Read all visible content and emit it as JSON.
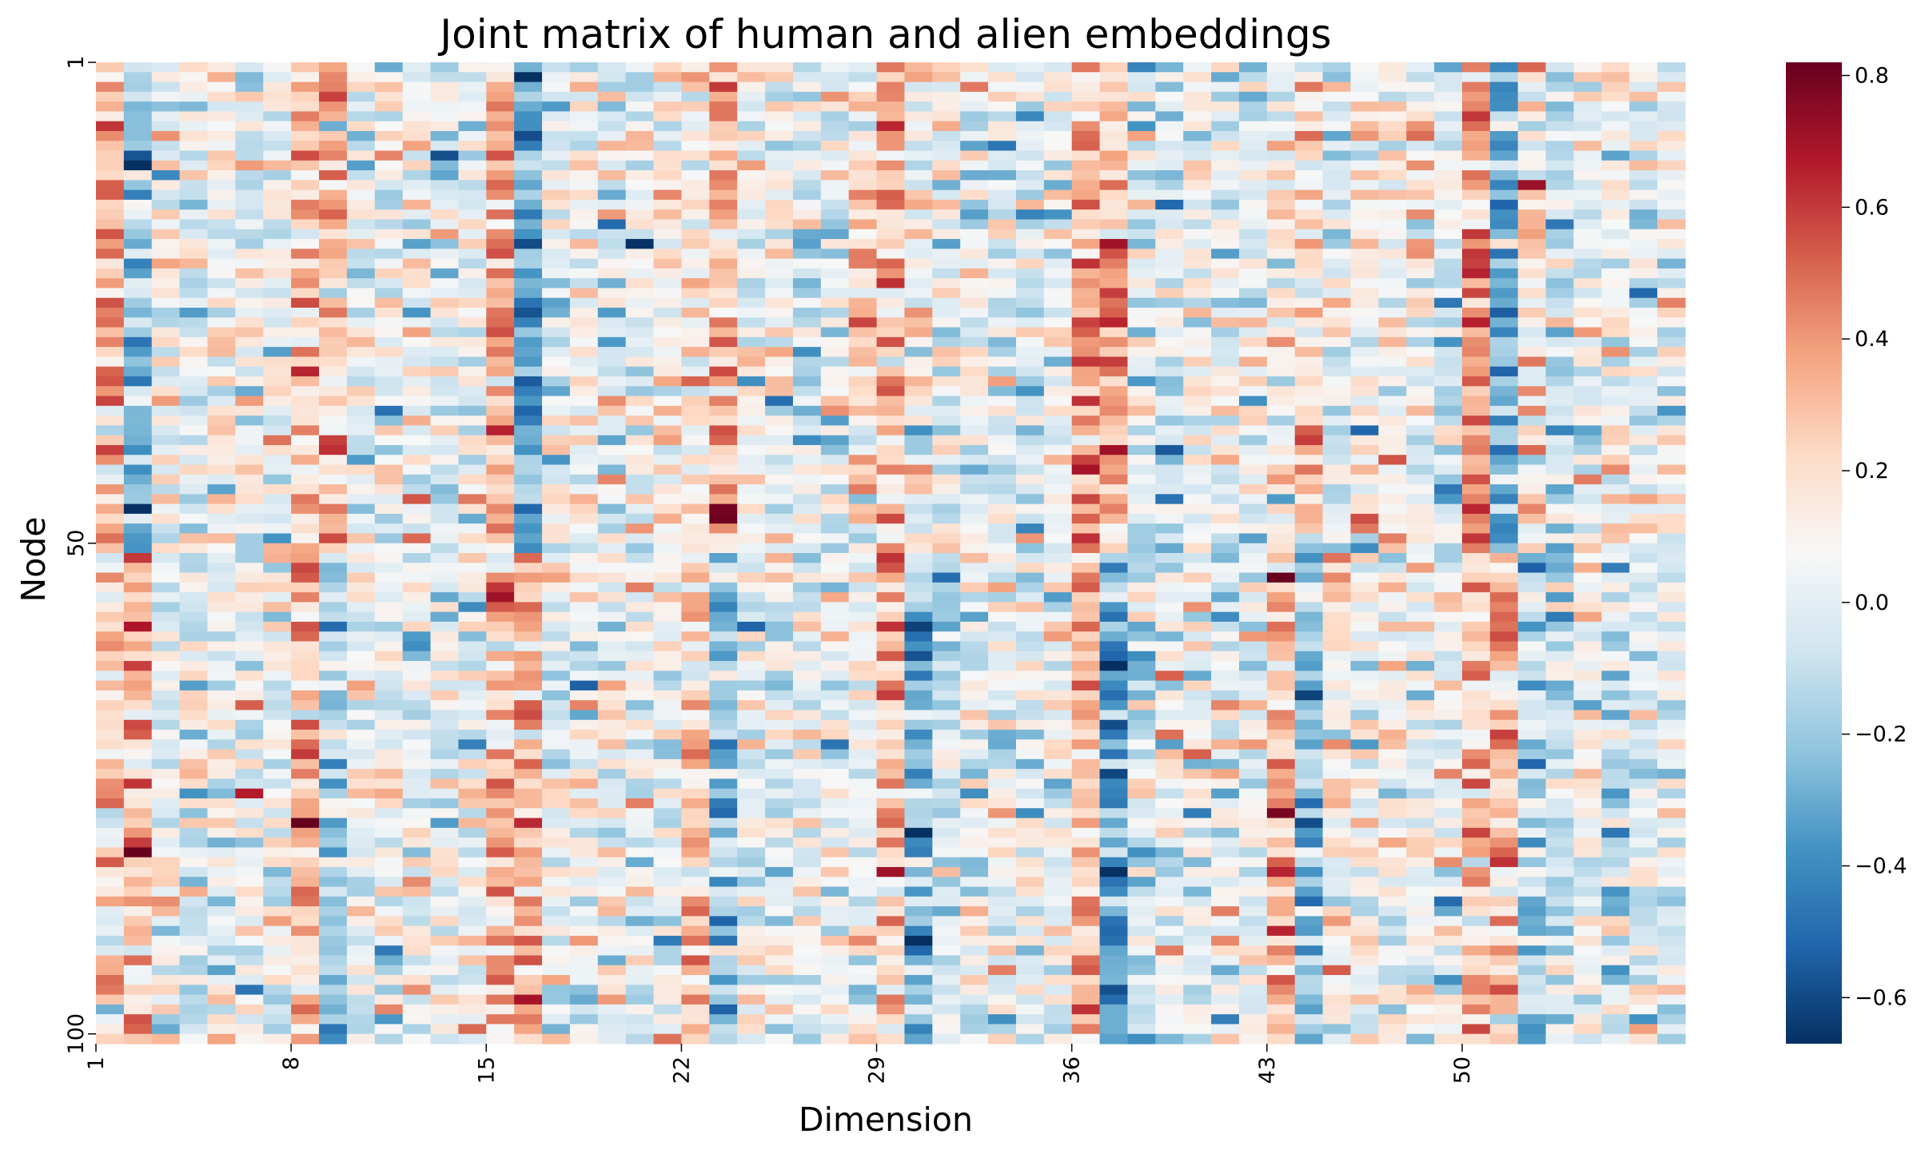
{
  "chart_data": {
    "type": "heatmap",
    "title": "Joint matrix of human and alien embeddings",
    "xlabel": "Dimension",
    "ylabel": "Node",
    "n_rows": 100,
    "n_cols": 57,
    "x_tick_labels": [
      "1",
      "8",
      "15",
      "22",
      "29",
      "36",
      "43",
      "50"
    ],
    "x_tick_values": [
      1,
      8,
      15,
      22,
      29,
      36,
      43,
      50
    ],
    "y_tick_labels": [
      "1",
      "50",
      "100"
    ],
    "y_tick_values": [
      1,
      50,
      100
    ],
    "colormap": "RdBu_r",
    "vmin": -0.67,
    "vmax": 0.82,
    "colorbar_ticks": [
      0.8,
      0.6,
      0.4,
      0.2,
      0.0,
      -0.2,
      -0.4,
      -0.6
    ],
    "colorbar_tick_labels": [
      "0.8",
      "0.6",
      "0.4",
      "0.2",
      "0.0",
      "−0.2",
      "−0.4",
      "−0.6"
    ],
    "grid": false,
    "legend": "colorbar-right",
    "groups": [
      {
        "rows": [
          1,
          50
        ],
        "column_means": [
          0.32,
          -0.23,
          0.03,
          -0.02,
          0.08,
          0.02,
          0.04,
          0.26,
          0.3,
          0.02,
          0.05,
          0.08,
          -0.01,
          0.06,
          0.3,
          -0.33,
          0.04,
          0.06,
          -0.02,
          0.02,
          0.08,
          0.16,
          0.3,
          0.06,
          0.02,
          -0.02,
          0.04,
          0.18,
          0.26,
          0.1,
          0.06,
          0.04,
          0.02,
          -0.04,
          0.06,
          0.36,
          0.3,
          0.02,
          -0.06,
          0.08,
          0.04,
          0.02,
          0.1,
          0.22,
          -0.04,
          0.12,
          0.08,
          0.02,
          -0.04,
          0.36,
          -0.35,
          0.16,
          -0.08,
          0.02,
          0.05,
          -0.02,
          0.08
        ]
      },
      {
        "rows": [
          51,
          100
        ],
        "column_means": [
          0.2,
          0.3,
          0.04,
          -0.02,
          0.08,
          0.06,
          0.02,
          0.32,
          -0.18,
          0.08,
          0.04,
          0.06,
          0.02,
          0.04,
          0.26,
          0.3,
          0.02,
          0.04,
          0.02,
          -0.02,
          0.06,
          0.28,
          -0.22,
          0.04,
          0.02,
          0.06,
          0.04,
          0.02,
          0.3,
          -0.28,
          -0.1,
          0.04,
          0.02,
          0.04,
          0.06,
          0.3,
          -0.33,
          -0.1,
          0.04,
          0.06,
          0.02,
          0.04,
          0.36,
          -0.25,
          0.12,
          0.06,
          0.04,
          0.02,
          0.02,
          0.22,
          0.26,
          -0.1,
          -0.04,
          0.06,
          -0.08,
          -0.06,
          0.02
        ]
      }
    ]
  }
}
